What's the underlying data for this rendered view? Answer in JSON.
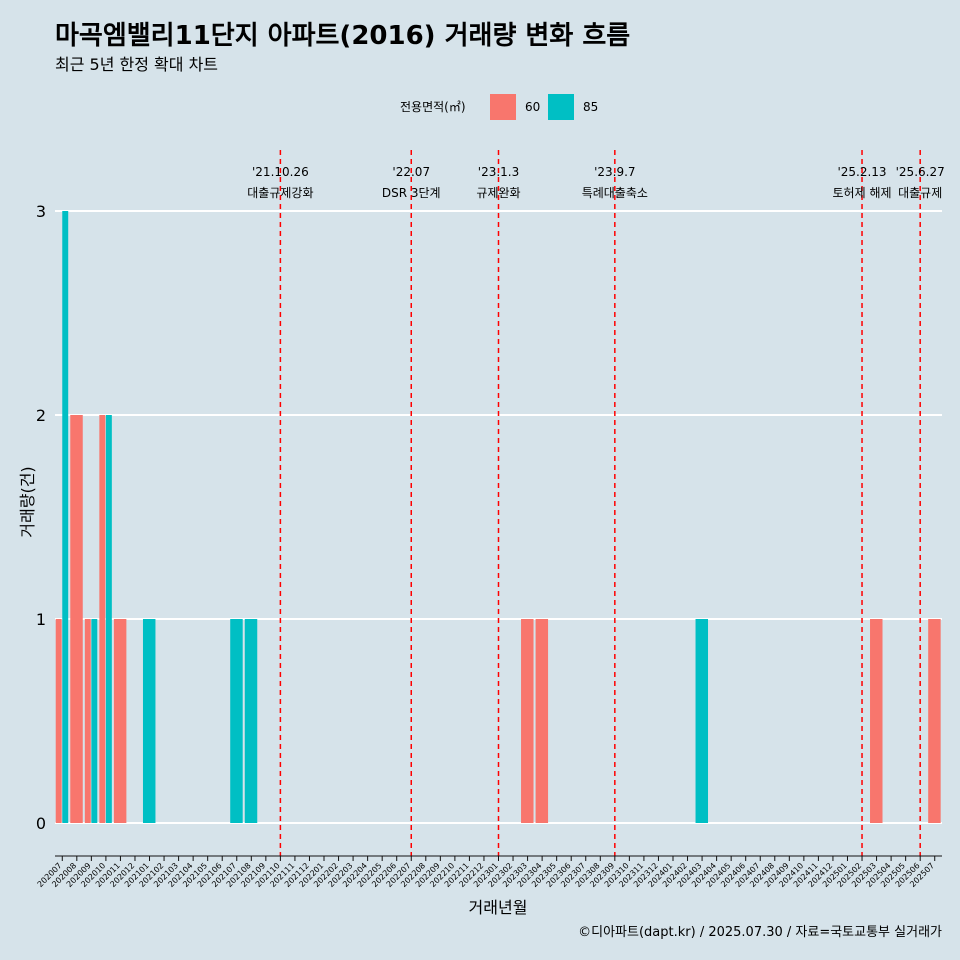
{
  "chart_data": {
    "type": "bar",
    "title": "마곡엠밸리11단지 아파트(2016) 거래량 변화 흐름",
    "subtitle": "최근 5년 한정 확대 차트",
    "xlabel": "거래년월",
    "ylabel": "거래량(건)",
    "ylim": [
      0,
      3
    ],
    "yticks": [
      0,
      1,
      2,
      3
    ],
    "grid": "horizontal major lines",
    "legend": {
      "title": "전용면적(㎡)",
      "placement": "top"
    },
    "categories": [
      "202007",
      "202008",
      "202009",
      "202010",
      "202011",
      "202012",
      "202101",
      "202102",
      "202103",
      "202104",
      "202105",
      "202106",
      "202107",
      "202108",
      "202109",
      "202110",
      "202111",
      "202112",
      "202201",
      "202202",
      "202203",
      "202204",
      "202205",
      "202206",
      "202207",
      "202208",
      "202209",
      "202210",
      "202211",
      "202212",
      "202301",
      "202302",
      "202303",
      "202304",
      "202305",
      "202306",
      "202307",
      "202308",
      "202309",
      "202310",
      "202311",
      "202312",
      "202401",
      "202402",
      "202403",
      "202404",
      "202405",
      "202406",
      "202407",
      "202408",
      "202409",
      "202410",
      "202411",
      "202412",
      "202501",
      "202502",
      "202503",
      "202504",
      "202505",
      "202506",
      "202507"
    ],
    "series": [
      {
        "name": "60",
        "color": "#f8766d",
        "values": [
          1,
          2,
          1,
          2,
          1,
          0,
          0,
          0,
          0,
          0,
          0,
          0,
          0,
          0,
          0,
          0,
          0,
          0,
          0,
          0,
          0,
          0,
          0,
          0,
          0,
          0,
          0,
          0,
          0,
          0,
          0,
          0,
          1,
          1,
          0,
          0,
          0,
          0,
          0,
          0,
          0,
          0,
          0,
          0,
          0,
          0,
          0,
          0,
          0,
          0,
          0,
          0,
          0,
          0,
          0,
          0,
          1,
          0,
          0,
          0,
          1
        ]
      },
      {
        "name": "85",
        "color": "#00bfc4",
        "values": [
          3,
          0,
          1,
          2,
          0,
          0,
          1,
          0,
          0,
          0,
          0,
          0,
          1,
          1,
          0,
          0,
          0,
          0,
          0,
          0,
          0,
          0,
          0,
          0,
          0,
          0,
          0,
          0,
          0,
          0,
          0,
          0,
          0,
          0,
          0,
          0,
          0,
          0,
          0,
          0,
          0,
          0,
          0,
          0,
          1,
          0,
          0,
          0,
          0,
          0,
          0,
          0,
          0,
          0,
          0,
          0,
          0,
          0,
          0,
          0,
          0
        ]
      }
    ],
    "annotations": [
      {
        "x": "202110",
        "date": "'21.10.26",
        "label": "대출규제강화"
      },
      {
        "x": "202207",
        "date": "'22.07",
        "label": "DSR 3단계"
      },
      {
        "x": "202301",
        "date": "'23.1.3",
        "label": "규제완화"
      },
      {
        "x": "202309",
        "date": "'23.9.7",
        "label": "특례대출축소"
      },
      {
        "x": "202502",
        "date": "'25.2.13",
        "label": "토허제 해제"
      },
      {
        "x": "202506",
        "date": "'25.6.27",
        "label": "대출규제"
      }
    ],
    "annotation_line_color": "#ff0000",
    "caption": "©디아파트(dapt.kr) / 2025.07.30 / 자료=국토교통부 실거래가"
  }
}
